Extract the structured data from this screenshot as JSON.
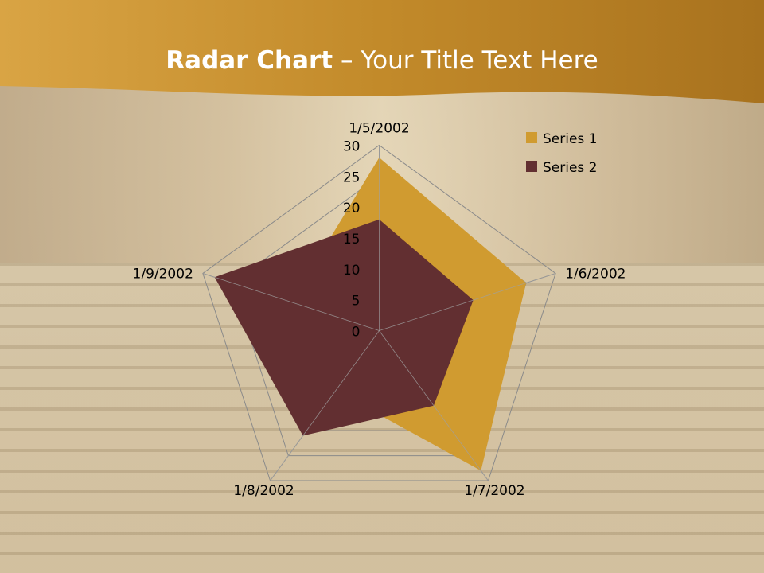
{
  "slide": {
    "title_bold": "Radar Chart",
    "title_rest": " – Your Title Text Here"
  },
  "colors": {
    "banner": "#c8942e",
    "series1": "#d09b30",
    "series2": "#622f31",
    "grid": "#8a8a8a"
  },
  "chart_data": {
    "type": "radar",
    "categories": [
      "1/5/2002",
      "1/6/2002",
      "1/7/2002",
      "1/8/2002",
      "1/9/2002"
    ],
    "series": [
      {
        "name": "Series 1",
        "values": [
          28,
          25,
          28,
          12,
          15
        ]
      },
      {
        "name": "Series 2",
        "values": [
          18,
          16,
          15,
          21,
          28
        ]
      }
    ],
    "rlim": [
      0,
      30
    ],
    "ticks": [
      "0",
      "5",
      "10",
      "15",
      "20",
      "25",
      "30"
    ],
    "legend": "right"
  }
}
